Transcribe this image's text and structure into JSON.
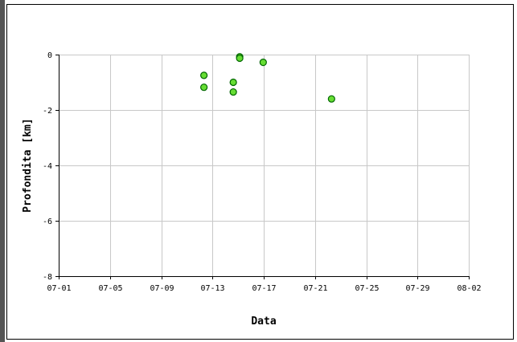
{
  "chart_data": {
    "type": "scatter",
    "title": "",
    "xlabel": "Data",
    "ylabel": "Profondita [km]",
    "x_type": "date",
    "x_min": "07-01",
    "x_max": "08-02",
    "xlim": [
      "07-01",
      "08-02"
    ],
    "ylim": [
      -8,
      0
    ],
    "grid": true,
    "legend": "none",
    "x_ticks": [
      "07-01",
      "07-05",
      "07-09",
      "07-13",
      "07-17",
      "07-21",
      "07-25",
      "07-29",
      "08-02"
    ],
    "y_ticks": [
      "0",
      "-2",
      "-4",
      "-6",
      "-8"
    ],
    "y_tick_values": [
      0,
      -2,
      -4,
      -6,
      -8
    ],
    "points": [
      {
        "x": "07-12 08:00",
        "y": -0.75
      },
      {
        "x": "07-12 08:00",
        "y": -1.18
      },
      {
        "x": "07-14 15:00",
        "y": -1.0
      },
      {
        "x": "07-14 15:00",
        "y": -1.35
      },
      {
        "x": "07-15 03:00",
        "y": -0.08
      },
      {
        "x": "07-15 03:00",
        "y": -0.13
      },
      {
        "x": "07-16 23:00",
        "y": -0.28
      },
      {
        "x": "07-22 07:00",
        "y": -1.6
      }
    ],
    "colors": {
      "point_fill": "#66dd33",
      "point_stroke": "#006600",
      "grid": "#c8c8c8",
      "axis": "#000000",
      "frame": "#000000",
      "left_bar": "#555555"
    }
  }
}
